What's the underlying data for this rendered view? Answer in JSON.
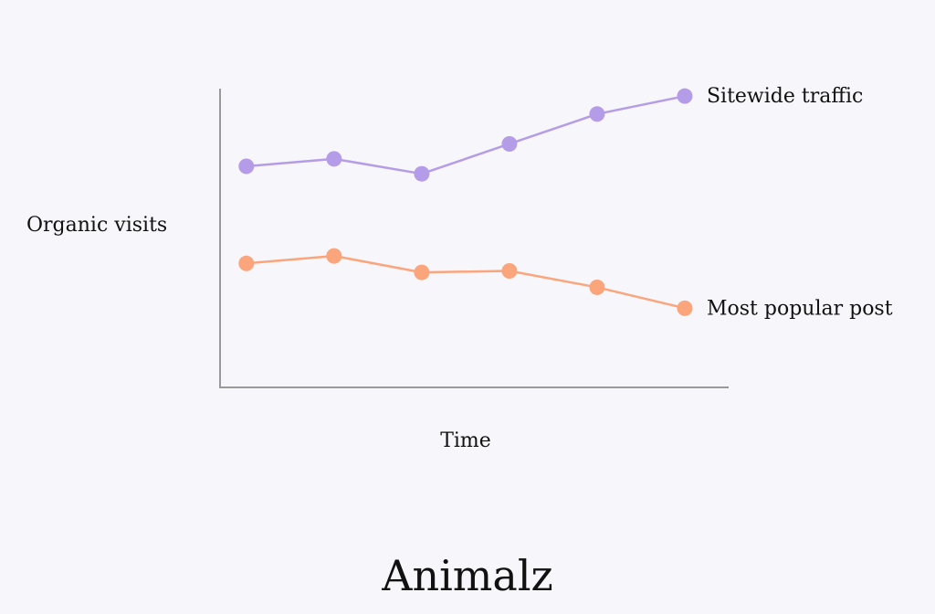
{
  "brand": {
    "logo_text": "Animalz"
  },
  "colors": {
    "background": "#f7f6fa",
    "axis": "#9a9a9a",
    "text": "#111111",
    "sitewide": "#b59ce8",
    "popular": "#fba57c"
  },
  "chart_data": {
    "type": "line",
    "title": "",
    "xlabel": "Time",
    "ylabel": "Organic visits",
    "x": [
      1,
      2,
      3,
      4,
      5,
      6
    ],
    "xlim": [
      0.7,
      6.5
    ],
    "ylim": [
      0,
      100
    ],
    "grid": false,
    "legend": "inline-right",
    "series": [
      {
        "name": "Sitewide traffic",
        "color": "#b59ce8",
        "values": [
          74,
          76.5,
          71.5,
          81.5,
          91.5,
          97.5
        ]
      },
      {
        "name": "Most popular post",
        "color": "#fba57c",
        "values": [
          41.5,
          44,
          38.5,
          39,
          33.5,
          26.5
        ]
      }
    ]
  }
}
